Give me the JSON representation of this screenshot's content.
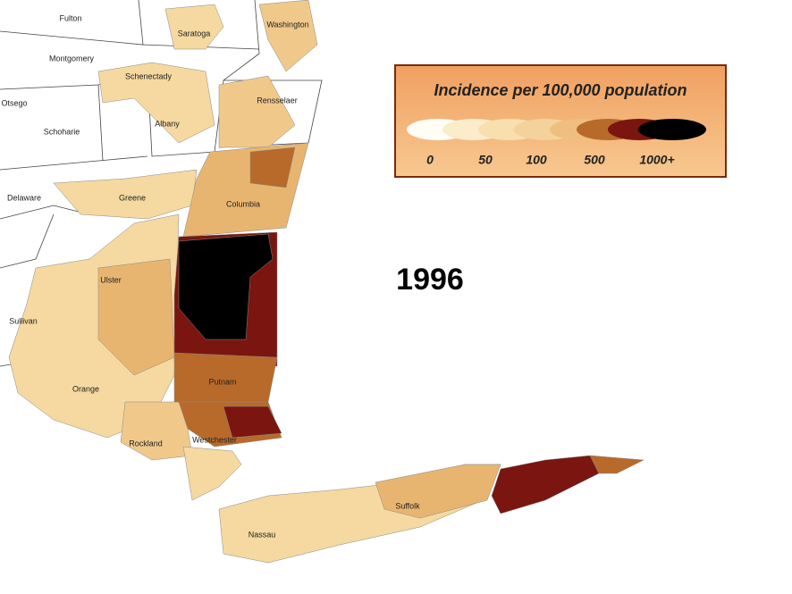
{
  "title": "1996",
  "legend": {
    "title": "Incidence per 100,000 population",
    "labels": [
      "0",
      "50",
      "100",
      "500",
      "1000+"
    ]
  },
  "counties": [
    "Fulton",
    "Washington",
    "Saratoga",
    "Montgomery",
    "Schenectady",
    "Otsego",
    "Rensselaer",
    "Albany",
    "Schoharie",
    "Delaware",
    "Greene",
    "Columbia",
    "Ulster",
    "Sullivan",
    "Orange",
    "Putnam",
    "Rockland",
    "Westchester",
    "Suffolk",
    "Nassau"
  ]
}
